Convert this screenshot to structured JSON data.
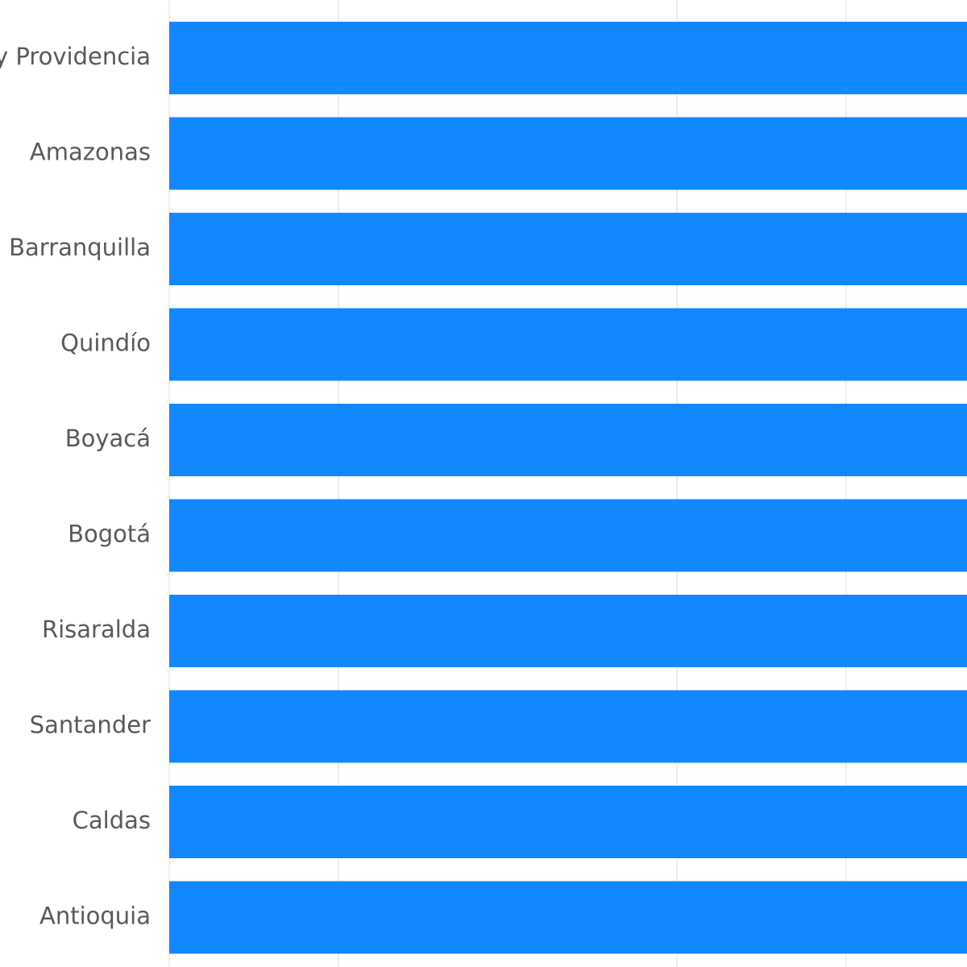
{
  "chart_data": {
    "type": "bar",
    "orientation": "horizontal",
    "categories": [
      "San Andrés y Providencia",
      "Amazonas",
      "Barranquilla",
      "Quindío",
      "Boyacá",
      "Bogotá",
      "Risaralda",
      "Santander",
      "Caldas",
      "Antioquia"
    ],
    "values": [
      1,
      1,
      1,
      1,
      1,
      1,
      1,
      1,
      1,
      1
    ],
    "xlim": [
      0,
      1
    ],
    "title": "",
    "xlabel": "",
    "ylabel": "",
    "grid": true,
    "legend": "none",
    "bar_color": "#1188ff",
    "grid_color": "#dcdcdc"
  }
}
